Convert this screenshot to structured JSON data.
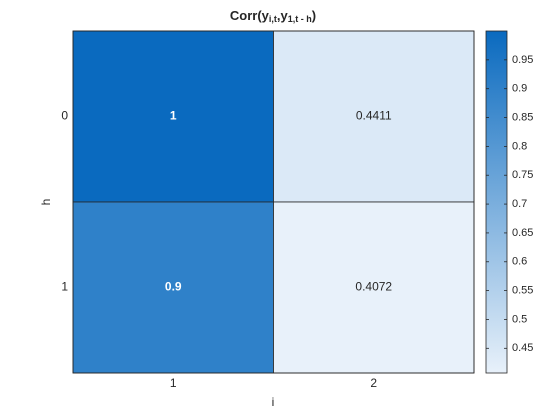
{
  "chart_data": {
    "type": "heatmap",
    "title": [
      {
        "text": "Corr(y",
        "sub": false
      },
      {
        "text": "i,t",
        "sub": true
      },
      {
        "text": ",y",
        "sub": false
      },
      {
        "text": "1,t - h",
        "sub": true
      },
      {
        "text": ")",
        "sub": false
      }
    ],
    "x_label": "i",
    "y_label": "h",
    "x_categories": [
      "1",
      "2"
    ],
    "y_categories": [
      "0",
      "1"
    ],
    "values": [
      [
        1,
        0.4411
      ],
      [
        0.9,
        0.4072
      ]
    ],
    "colormap": [
      "#e8f1fa",
      "#0a6abf"
    ],
    "clim": [
      0.4072,
      1
    ],
    "colorbar_ticks": [
      0.45,
      0.5,
      0.55,
      0.6,
      0.65,
      0.7,
      0.75,
      0.8,
      0.85,
      0.9,
      0.95
    ]
  }
}
